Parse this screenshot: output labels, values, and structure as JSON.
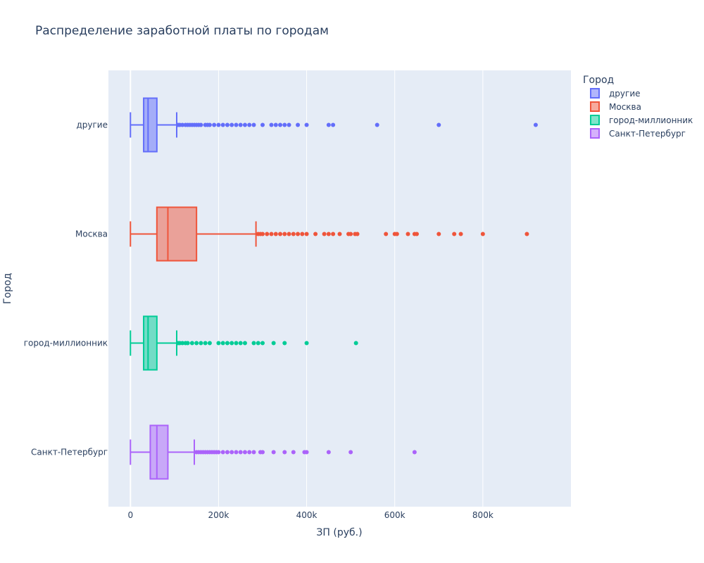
{
  "chart_data": {
    "type": "box",
    "title": "Распределение заработной платы по городам",
    "xlabel": "ЗП (руб.)",
    "ylabel": "Город",
    "xlim": [
      -50000,
      1000000
    ],
    "x_ticks": [
      0,
      200000,
      400000,
      600000,
      800000
    ],
    "x_tick_labels": [
      "0",
      "200k",
      "400k",
      "600k",
      "800k"
    ],
    "grid": true,
    "orientation": "horizontal",
    "legend": {
      "title": "Город",
      "position": "top-right"
    },
    "colors": {
      "plot_bg": "#E5ECF6",
      "grid": "#ffffff",
      "text": "#2a3f5f"
    },
    "series": [
      {
        "name": "другие",
        "color": "#636EFA",
        "lower_fence": 0,
        "q1": 30000,
        "median": 40000,
        "q3": 60000,
        "upper_fence": 105000,
        "outliers": [
          108000,
          112000,
          118000,
          125000,
          130000,
          135000,
          140000,
          145000,
          150000,
          155000,
          160000,
          170000,
          175000,
          180000,
          190000,
          200000,
          210000,
          220000,
          230000,
          240000,
          250000,
          260000,
          270000,
          280000,
          300000,
          320000,
          330000,
          340000,
          350000,
          360000,
          380000,
          400000,
          450000,
          460000,
          560000,
          700000,
          920000
        ]
      },
      {
        "name": "Москва",
        "color": "#EF553B",
        "lower_fence": 0,
        "q1": 60000,
        "median": 85000,
        "q3": 150000,
        "upper_fence": 285000,
        "outliers": [
          290000,
          295000,
          300000,
          310000,
          320000,
          330000,
          340000,
          350000,
          360000,
          370000,
          380000,
          390000,
          400000,
          420000,
          440000,
          450000,
          460000,
          475000,
          495000,
          500000,
          510000,
          515000,
          580000,
          600000,
          605000,
          630000,
          645000,
          650000,
          700000,
          735000,
          750000,
          800000,
          900000
        ]
      },
      {
        "name": "город-миллионник",
        "color": "#00CC96",
        "lower_fence": 0,
        "q1": 30000,
        "median": 40000,
        "q3": 60000,
        "upper_fence": 105000,
        "outliers": [
          108000,
          112000,
          118000,
          125000,
          130000,
          140000,
          150000,
          160000,
          170000,
          180000,
          200000,
          210000,
          220000,
          230000,
          240000,
          250000,
          260000,
          280000,
          290000,
          300000,
          325000,
          350000,
          400000,
          512000
        ]
      },
      {
        "name": "Санкт-Петербург",
        "color": "#AB63FA",
        "lower_fence": 0,
        "q1": 45000,
        "median": 60000,
        "q3": 85000,
        "upper_fence": 145000,
        "outliers": [
          150000,
          155000,
          160000,
          165000,
          170000,
          175000,
          180000,
          185000,
          190000,
          195000,
          200000,
          210000,
          220000,
          230000,
          240000,
          250000,
          260000,
          270000,
          280000,
          295000,
          300000,
          325000,
          350000,
          370000,
          395000,
          400000,
          450000,
          500000,
          645000
        ]
      }
    ]
  }
}
